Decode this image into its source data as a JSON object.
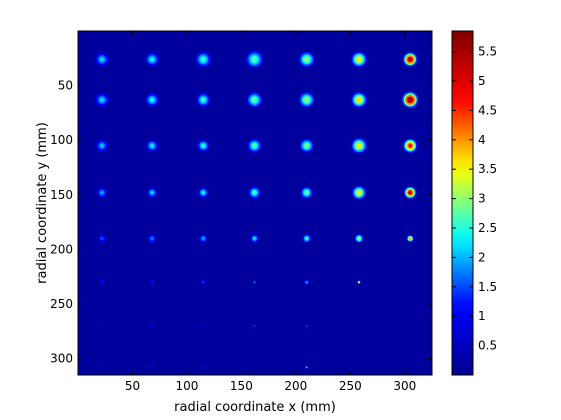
{
  "chart_data": {
    "type": "heatmap",
    "title": "",
    "xlabel": "radial coordinate x (mm)",
    "ylabel": "radial coordinate y (mm)",
    "xlim": [
      0,
      325
    ],
    "ylim": [
      0,
      315
    ],
    "y_reversed": true,
    "grid": false,
    "xticks": [
      50,
      100,
      150,
      200,
      250,
      300
    ],
    "yticks": [
      50,
      100,
      150,
      200,
      250,
      300
    ],
    "colorbar": {
      "range": [
        0,
        5.85
      ],
      "ticks": [
        0.5,
        1,
        1.5,
        2,
        2.5,
        3,
        3.5,
        4,
        4.5,
        5,
        5.5
      ],
      "colormap": "jet",
      "stops": [
        "#00008f",
        "#0000ff",
        "#00ffff",
        "#ffff00",
        "#ff0000",
        "#800000"
      ]
    },
    "background_value": 0.15,
    "spot_columns_x": [
      22,
      68,
      115,
      162,
      210,
      258,
      305
    ],
    "spot_rows_y": [
      26,
      63,
      105,
      148,
      190,
      230,
      270,
      308
    ],
    "spot_peak_values": [
      [
        2.2,
        2.4,
        2.6,
        2.8,
        3.1,
        3.6,
        5.5
      ],
      [
        2.2,
        2.4,
        2.6,
        2.9,
        3.1,
        3.7,
        5.8
      ],
      [
        2.1,
        2.3,
        2.5,
        2.8,
        3.0,
        3.6,
        4.8
      ],
      [
        2.0,
        2.2,
        2.4,
        2.7,
        2.9,
        3.6,
        5.2
      ],
      [
        1.6,
        1.8,
        2.0,
        2.3,
        2.6,
        3.2,
        4.2
      ],
      [
        1.2,
        1.3,
        1.5,
        1.8,
        2.0,
        3.5,
        0.15
      ],
      [
        0.9,
        1.0,
        1.1,
        1.5,
        1.6,
        0.15,
        0.15
      ],
      [
        0.7,
        0.8,
        0.9,
        0.15,
        2.2,
        0.15,
        0.15
      ]
    ],
    "spot_radius_mm": [
      [
        8,
        8,
        9,
        10,
        9,
        9,
        8
      ],
      [
        8,
        8,
        8,
        9,
        9,
        9,
        9
      ],
      [
        7,
        7,
        7,
        8,
        8,
        9,
        8
      ],
      [
        6,
        6,
        6,
        7,
        7,
        8,
        7
      ],
      [
        5,
        5,
        5,
        5,
        5,
        5,
        4
      ],
      [
        3,
        3,
        3,
        2,
        3,
        2,
        0
      ],
      [
        2,
        3,
        2,
        1,
        1,
        0,
        0
      ],
      [
        2,
        2,
        2,
        0,
        2,
        0,
        0
      ]
    ]
  }
}
